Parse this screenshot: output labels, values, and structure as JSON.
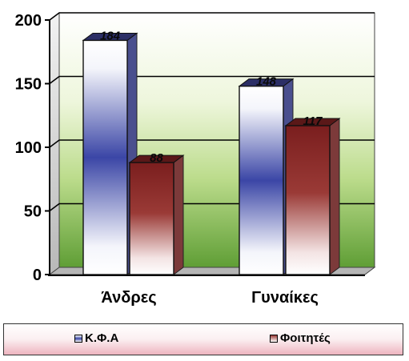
{
  "chart_data": {
    "type": "bar",
    "categories": [
      "Άνδρες",
      "Γυναίκες"
    ],
    "series": [
      {
        "name": "Κ.Φ.Α",
        "values": [
          184,
          148
        ],
        "color": "#3a45a8"
      },
      {
        "name": "Φοιτητές",
        "values": [
          88,
          117
        ],
        "color": "#8a2a2a"
      }
    ],
    "data_labels": [
      "184",
      "88",
      "148",
      "117"
    ],
    "ylim": [
      0,
      200
    ],
    "yticks": [
      0,
      50,
      100,
      150,
      200
    ],
    "ytick_labels": [
      "0",
      "50",
      "100",
      "150",
      "200"
    ],
    "grid": true,
    "legend_position": "bottom",
    "wall_colors": {
      "top": "#ffffff",
      "mid": "#d6ecb0",
      "bottom": "#6aa83a"
    }
  }
}
